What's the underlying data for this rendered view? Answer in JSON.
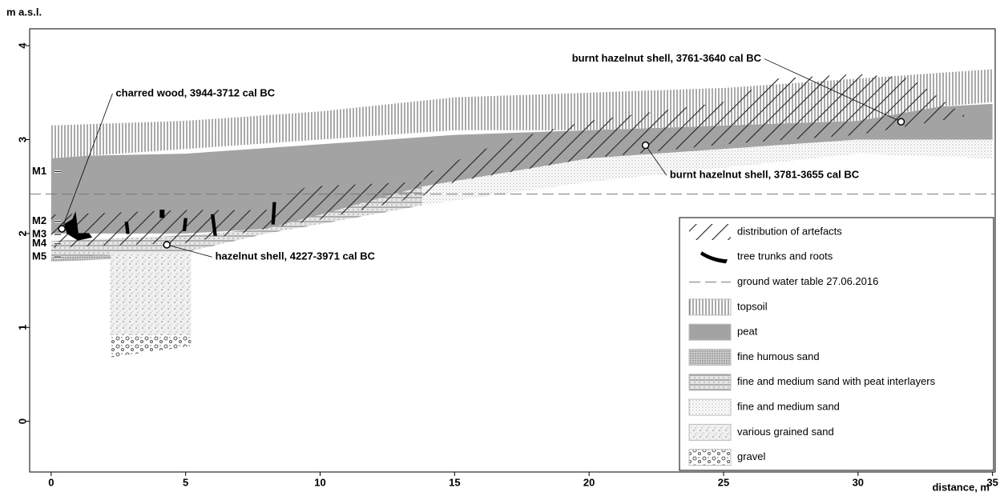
{
  "chart_data": {
    "type": "section",
    "y_label": "m a.s.l.",
    "x_label": "distance, m",
    "xlim": [
      -0.8,
      35.1
    ],
    "ylim": [
      -0.54,
      4.18
    ],
    "xticks": [
      0,
      5,
      10,
      15,
      20,
      25,
      30,
      35
    ],
    "yticks": [
      0,
      1,
      2,
      3,
      4
    ],
    "legend": [
      {
        "name": "distribution of artefacts",
        "areas": [
          {
            "x": [
              0,
              5,
              8,
              9.5,
              13.8,
              14,
              17,
              20,
              25,
              27,
              30,
              32,
              34,
              30,
              25,
              20,
              15,
              13.8,
              10,
              8,
              5,
              0
            ],
            "y": [
              2.2,
              2.25,
              2.25,
              2.5,
              2.55,
              2.65,
              3.0,
              3.2,
              3.4,
              3.65,
              3.7,
              3.65,
              3.25,
              3.05,
              2.95,
              2.8,
              2.55,
              2.4,
              2.15,
              2.05,
              1.9,
              1.85
            ]
          }
        ]
      },
      {
        "name": "tree trunks and roots",
        "areas": [
          {
            "x": [
              0.5,
              0.8,
              0.9,
              1.0,
              1.4,
              1.5,
              1.0,
              0.6
            ],
            "y": [
              2.1,
              2.15,
              2.22,
              2.0,
              2.0,
              1.96,
              1.93,
              2.0
            ]
          },
          {
            "x": [
              2.75,
              2.85,
              2.9,
              2.8
            ],
            "y": [
              2.12,
              2.12,
              2.0,
              2.0
            ]
          },
          {
            "x": [
              4.05,
              4.2,
              4.2,
              4.05
            ],
            "y": [
              2.25,
              2.25,
              2.17,
              2.17
            ]
          },
          {
            "x": [
              4.95,
              5.05,
              5.0,
              4.9
            ],
            "y": [
              2.16,
              2.16,
              2.03,
              2.03
            ]
          },
          {
            "x": [
              5.95,
              6.05,
              6.15,
              6.05
            ],
            "y": [
              2.2,
              2.2,
              1.98,
              1.98
            ]
          },
          {
            "x": [
              8.25,
              8.35,
              8.3,
              8.2
            ],
            "y": [
              2.33,
              2.33,
              2.1,
              2.1
            ]
          }
        ]
      },
      {
        "name": "ground water table 27.06.2016",
        "level": 2.42
      },
      {
        "name": "topsoil",
        "areas": [
          {
            "x": [
              0,
              5,
              10,
              15,
              20,
              25,
              30,
              35,
              35,
              33,
              30,
              25,
              20,
              15,
              10,
              5,
              0
            ],
            "y": [
              3.15,
              3.2,
              3.3,
              3.45,
              3.5,
              3.55,
              3.65,
              3.75,
              3.4,
              3.35,
              3.2,
              3.15,
              3.1,
              3.1,
              3.0,
              2.9,
              2.8
            ]
          }
        ]
      },
      {
        "name": "peat",
        "areas": [
          {
            "x": [
              0,
              5,
              10,
              15,
              20,
              25,
              30,
              33,
              35,
              35,
              30,
              25,
              20,
              15,
              13.8,
              10,
              8,
              5,
              0
            ],
            "y": [
              2.82,
              2.85,
              2.95,
              3.05,
              3.1,
              3.15,
              3.2,
              3.35,
              3.38,
              3.0,
              3.0,
              2.9,
              2.8,
              2.55,
              2.5,
              2.2,
              2.05,
              2.0,
              2.0
            ]
          }
        ]
      },
      {
        "name": "fine humous sand",
        "areas": [
          {
            "x": [
              0,
              5,
              5,
              0
            ],
            "y": [
              1.75,
              1.8,
              1.76,
              1.7
            ]
          }
        ]
      },
      {
        "name": "fine and medium sand with peat interlayers",
        "areas": [
          {
            "x": [
              0,
              5,
              8,
              10,
              13.8,
              13.8,
              10,
              8,
              5,
              0
            ],
            "y": [
              1.92,
              1.98,
              2.05,
              2.2,
              2.5,
              2.3,
              2.1,
              2.0,
              1.8,
              1.75
            ]
          }
        ]
      },
      {
        "name": "fine and medium sand",
        "areas": [
          {
            "x": [
              13.8,
              20,
              25,
              30,
              35,
              35,
              30,
              25,
              20,
              15,
              13.8
            ],
            "y": [
              2.5,
              2.8,
              2.9,
              3.0,
              3.0,
              2.8,
              2.85,
              2.7,
              2.55,
              2.35,
              2.3
            ]
          }
        ]
      },
      {
        "name": "various grained sand",
        "areas": [
          {
            "x": [
              2.2,
              5.2,
              5.2,
              2.2
            ],
            "y": [
              1.8,
              1.8,
              0.85,
              0.75
            ]
          }
        ]
      },
      {
        "name": "gravel",
        "areas": [
          {
            "x": [
              2.2,
              5.2,
              5.2,
              2.2
            ],
            "y": [
              0.92,
              0.92,
              0.8,
              0.68
            ]
          }
        ]
      }
    ],
    "markers": [
      {
        "label": "M1",
        "y": 2.66
      },
      {
        "label": "M2",
        "y": 2.13
      },
      {
        "label": "M3",
        "y": 1.99
      },
      {
        "label": "M4",
        "y": 1.89
      },
      {
        "label": "M5",
        "y": 1.75
      }
    ],
    "samples": [
      {
        "label": "charred wood, 3944-3712 cal BC",
        "x": 0.4,
        "y": 2.05,
        "label_x": 2.4,
        "label_y": 3.49
      },
      {
        "label": "hazelnut shell, 4227-3971 cal BC",
        "x": 4.3,
        "y": 1.88,
        "label_x": 6.1,
        "label_y": 1.75
      },
      {
        "label": "burnt hazelnut shell, 3781-3655 cal BC",
        "x": 22.1,
        "y": 2.94,
        "label_x": 23.0,
        "label_y": 2.62
      },
      {
        "label": "burnt hazelnut shell, 3761-3640 cal BC",
        "x": 31.6,
        "y": 3.19,
        "label_x": 26.4,
        "label_y": 3.86
      }
    ]
  }
}
